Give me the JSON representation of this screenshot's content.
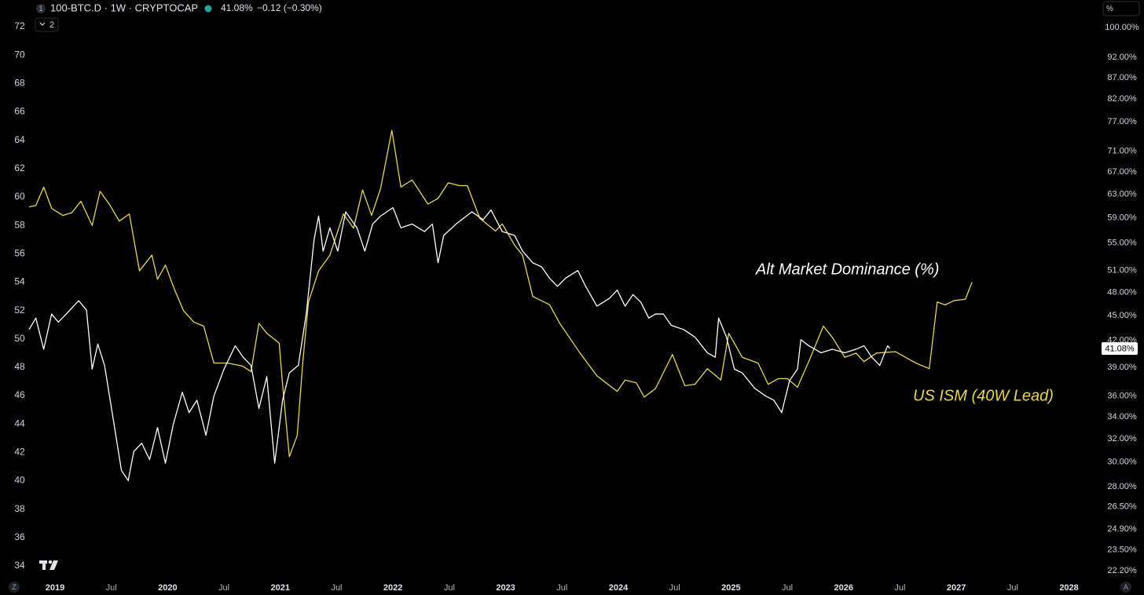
{
  "header": {
    "series_index": "1",
    "symbol": "100-BTC.D · 1W · CRYPTOCAP",
    "last": "41.08%",
    "change": "−0.12 (−0.30%)",
    "pane_count": "2",
    "scale_mode": "%",
    "zoom": "Z",
    "auto": "A"
  },
  "chart_data": {
    "type": "line",
    "xlim": [
      2018.512,
      2028.275
    ],
    "xticks": [
      2019,
      {
        "value": 2019.5,
        "label": "Jul"
      },
      2020,
      {
        "value": 2020.5,
        "label": "Jul"
      },
      2021,
      {
        "value": 2021.5,
        "label": "Jul"
      },
      2022,
      {
        "value": 2022.5,
        "label": "Jul"
      },
      2023,
      {
        "value": 2023.5,
        "label": "Jul"
      },
      2024,
      {
        "value": 2024.5,
        "label": "Jul"
      },
      2025,
      {
        "value": 2025.5,
        "label": "Jul"
      },
      2026,
      {
        "value": 2026.5,
        "label": "Jul"
      },
      2027,
      {
        "value": 2027.5,
        "label": "Jul"
      },
      2028
    ],
    "ylim": [
      32.95,
      73.88
    ],
    "yticks": [
      34,
      36,
      38,
      40,
      42,
      44,
      46,
      48,
      50,
      52,
      54,
      56,
      58,
      60,
      62,
      64,
      66,
      68,
      70,
      72
    ],
    "y2lim": [
      21.58,
      107.9
    ],
    "y2log": true,
    "y2ticks": [
      {
        "value": 100,
        "label": "100.00%"
      },
      {
        "value": 92,
        "label": "92.00%"
      },
      {
        "value": 87,
        "label": "87.00%"
      },
      {
        "value": 82,
        "label": "82.00%"
      },
      {
        "value": 77,
        "label": "77.00%"
      },
      {
        "value": 71,
        "label": "71.00%"
      },
      {
        "value": 67,
        "label": "67.00%"
      },
      {
        "value": 63,
        "label": "63.00%"
      },
      {
        "value": 59,
        "label": "59.00%"
      },
      {
        "value": 55,
        "label": "55.00%"
      },
      {
        "value": 51,
        "label": "51.00%"
      },
      {
        "value": 48,
        "label": "48.00%"
      },
      {
        "value": 45,
        "label": "45.00%"
      },
      {
        "value": 42,
        "label": "42.00%"
      },
      {
        "value": 39,
        "label": "39.00%"
      },
      {
        "value": 36,
        "label": "36.00%"
      },
      {
        "value": 34,
        "label": "34.00%"
      },
      {
        "value": 32,
        "label": "32.00%"
      },
      {
        "value": 30,
        "label": "30.00%"
      },
      {
        "value": 28,
        "label": "28.00%"
      },
      {
        "value": 26.5,
        "label": "26.50%"
      },
      {
        "value": 24.9,
        "label": "24.90%"
      },
      {
        "value": 23.5,
        "label": "23.50%"
      },
      {
        "value": 22.2,
        "label": "22.20%"
      }
    ],
    "series": [
      {
        "name": "US ISM (40W Lead)",
        "color": "#e9d74f",
        "x": [
          2018.77,
          2018.83,
          2018.9,
          2018.97,
          2019.07,
          2019.15,
          2019.23,
          2019.33,
          2019.4,
          2019.49,
          2019.57,
          2019.66,
          2019.75,
          2019.86,
          2019.91,
          2019.98,
          2020.06,
          2020.14,
          2020.23,
          2020.32,
          2020.41,
          2020.53,
          2020.66,
          2020.74,
          2020.81,
          2020.88,
          2020.99,
          2021.02,
          2021.08,
          2021.15,
          2021.2,
          2021.25,
          2021.34,
          2021.44,
          2021.56,
          2021.65,
          2021.73,
          2021.81,
          2021.89,
          2021.99,
          2022.07,
          2022.17,
          2022.31,
          2022.4,
          2022.49,
          2022.59,
          2022.66,
          2022.77,
          2022.91,
          2022.97,
          2023.08,
          2023.15,
          2023.24,
          2023.39,
          2023.48,
          2023.66,
          2023.81,
          2023.99,
          2024.06,
          2024.16,
          2024.23,
          2024.33,
          2024.48,
          2024.59,
          2024.68,
          2024.79,
          2024.91,
          2024.98,
          2025.1,
          2025.24,
          2025.33,
          2025.42,
          2025.5,
          2025.59,
          2025.69,
          2025.82,
          2025.9,
          2026.01,
          2026.11,
          2026.18,
          2026.29,
          2026.46,
          2026.64,
          2026.76,
          2026.83,
          2026.9,
          2026.98,
          2027.08,
          2027.14
        ],
        "values": [
          59.3,
          59.4,
          60.7,
          59.2,
          58.7,
          58.9,
          59.7,
          58.0,
          60.4,
          59.4,
          58.3,
          58.8,
          54.8,
          55.9,
          54.2,
          55.2,
          53.5,
          52.0,
          51.2,
          50.9,
          48.3,
          48.3,
          48.1,
          47.7,
          51.1,
          50.4,
          49.7,
          46.8,
          41.7,
          43.2,
          48.4,
          52.6,
          54.8,
          55.9,
          58.8,
          57.8,
          60.5,
          58.7,
          60.6,
          64.7,
          60.7,
          61.2,
          59.5,
          59.9,
          61.0,
          60.8,
          60.8,
          58.5,
          57.6,
          58.1,
          56.6,
          55.9,
          53.0,
          52.4,
          51.1,
          49.0,
          47.4,
          46.3,
          47.1,
          46.9,
          45.9,
          46.5,
          48.9,
          46.7,
          46.8,
          47.9,
          47.1,
          50.4,
          48.7,
          48.3,
          46.8,
          47.2,
          47.2,
          46.6,
          48.4,
          50.9,
          50.1,
          48.7,
          49.0,
          48.4,
          49.0,
          49.1,
          48.3,
          47.9,
          52.6,
          52.4,
          52.7,
          52.8,
          54.0
        ]
      },
      {
        "name": "Alt Market Dominance (%)",
        "color": "#ffffff",
        "axis": "y2",
        "x": [
          2018.77,
          2018.83,
          2018.9,
          2018.97,
          2019.03,
          2019.1,
          2019.21,
          2019.28,
          2019.33,
          2019.38,
          2019.44,
          2019.49,
          2019.54,
          2019.59,
          2019.65,
          2019.7,
          2019.77,
          2019.84,
          2019.91,
          2019.98,
          2020.05,
          2020.13,
          2020.19,
          2020.26,
          2020.34,
          2020.41,
          2020.5,
          2020.6,
          2020.67,
          2020.74,
          2020.81,
          2020.88,
          2020.95,
          2021.02,
          2021.08,
          2021.16,
          2021.23,
          2021.3,
          2021.34,
          2021.38,
          2021.44,
          2021.51,
          2021.58,
          2021.68,
          2021.75,
          2021.82,
          2021.89,
          2022.0,
          2022.07,
          2022.17,
          2022.28,
          2022.35,
          2022.4,
          2022.45,
          2022.56,
          2022.7,
          2022.8,
          2022.87,
          2022.97,
          2023.08,
          2023.15,
          2023.24,
          2023.32,
          2023.39,
          2023.46,
          2023.53,
          2023.64,
          2023.71,
          2023.81,
          2023.92,
          2023.99,
          2024.06,
          2024.13,
          2024.2,
          2024.27,
          2024.33,
          2024.4,
          2024.47,
          2024.58,
          2024.68,
          2024.79,
          2024.86,
          2024.89,
          2024.96,
          2025.03,
          2025.1,
          2025.21,
          2025.31,
          2025.38,
          2025.45,
          2025.52,
          2025.59,
          2025.62,
          2025.69,
          2025.8,
          2025.9,
          2026.01,
          2026.11,
          2026.18,
          2026.25,
          2026.32,
          2026.39,
          2026.41
        ],
        "values": [
          43.3,
          44.7,
          41.0,
          45.2,
          44.2,
          45.2,
          46.9,
          45.7,
          38.8,
          41.6,
          39.2,
          35.6,
          32.3,
          29.3,
          28.5,
          30.9,
          31.6,
          30.2,
          33.0,
          29.9,
          33.3,
          36.4,
          34.4,
          35.6,
          32.3,
          36.0,
          38.8,
          41.4,
          40.1,
          39.2,
          34.8,
          38.0,
          29.9,
          35.6,
          38.4,
          39.2,
          45.2,
          55.6,
          59.3,
          53.8,
          57.4,
          53.8,
          60.0,
          57.4,
          53.8,
          58.0,
          59.3,
          60.7,
          57.4,
          58.0,
          56.8,
          58.0,
          52.1,
          56.2,
          58.0,
          60.0,
          58.7,
          60.3,
          56.8,
          56.2,
          53.8,
          52.1,
          51.5,
          49.9,
          48.8,
          49.9,
          51.0,
          48.8,
          46.2,
          47.2,
          48.3,
          46.2,
          47.7,
          46.7,
          44.7,
          45.2,
          45.2,
          43.8,
          43.3,
          42.4,
          40.6,
          40.1,
          44.7,
          42.4,
          38.8,
          38.4,
          36.8,
          36.0,
          35.6,
          34.4,
          37.6,
          38.8,
          42.1,
          41.4,
          40.6,
          41.0,
          40.6,
          41.0,
          41.4,
          40.1,
          39.2,
          41.4,
          41.08
        ]
      }
    ]
  }
}
